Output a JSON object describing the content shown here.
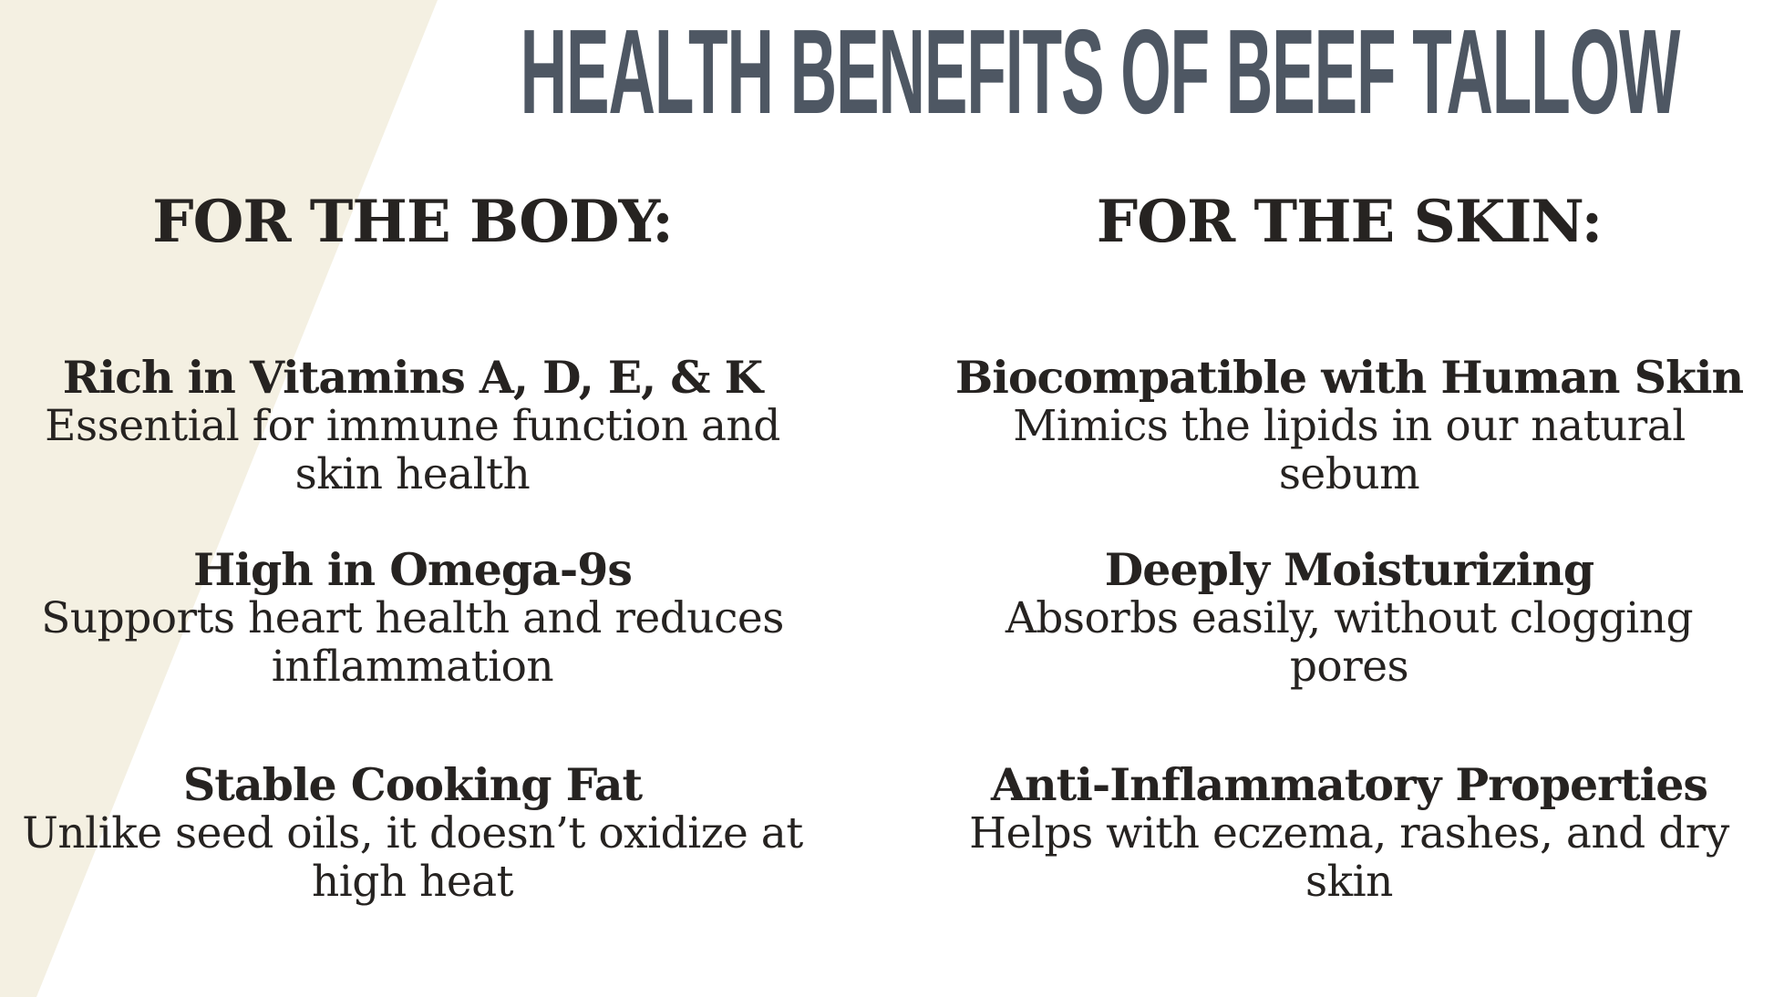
{
  "title": "HEALTH BENEFITS OF BEEF TALLOW",
  "colors": {
    "background": "#ffffff",
    "wedge": "#f4f0e2",
    "title_text": "#4e5763",
    "body_text": "#262321"
  },
  "columns": [
    {
      "heading": "FOR THE BODY:",
      "items": [
        {
          "title": "Rich in Vitamins A, D, E, & K",
          "desc": "Essential for immune function and\nskin health"
        },
        {
          "title": "High in Omega-9s",
          "desc": "Supports heart health and reduces\ninflammation"
        },
        {
          "title": "Stable Cooking Fat",
          "desc": "Unlike seed oils, it doesn’t oxidize at\nhigh heat"
        }
      ]
    },
    {
      "heading": "FOR THE SKIN:",
      "items": [
        {
          "title": "Biocompatible with Human Skin",
          "desc": "Mimics the lipids in our natural\nsebum"
        },
        {
          "title": "Deeply Moisturizing",
          "desc": "Absorbs easily, without clogging\npores"
        },
        {
          "title": "Anti-Inflammatory Properties",
          "desc": "Helps with eczema, rashes, and dry\nskin"
        }
      ]
    }
  ]
}
